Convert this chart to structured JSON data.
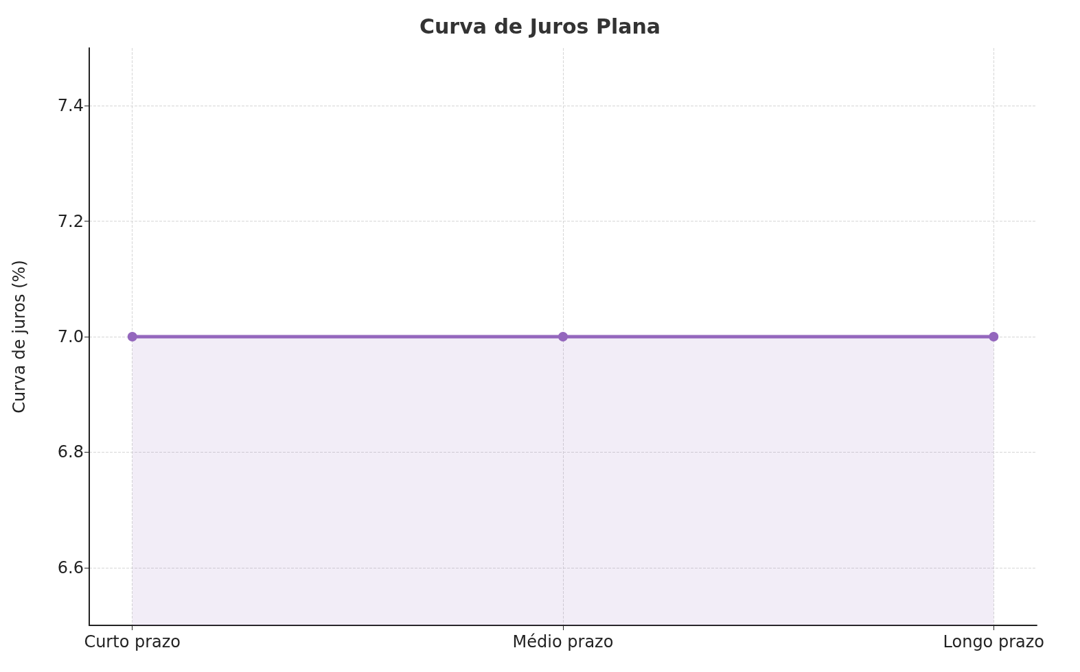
{
  "chart_data": {
    "type": "area",
    "title": "Curva de Juros Plana",
    "ylabel": "Curva de juros (%)",
    "categories": [
      "Curto prazo",
      "Médio prazo",
      "Longo prazo"
    ],
    "series": [
      {
        "color": "#9467bd",
        "values": [
          7.0,
          7.0,
          7.0
        ]
      }
    ],
    "ylim": [
      6.5,
      7.5
    ],
    "yticks": [
      6.6,
      6.8,
      {
        "value": 7,
        "label": "7.0"
      },
      7.2,
      7.4
    ],
    "grid": true,
    "marker": "circle",
    "line_style": "solid"
  }
}
